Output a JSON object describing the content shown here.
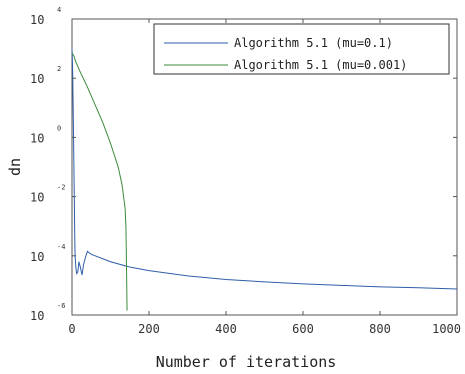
{
  "chart_data": {
    "type": "line",
    "xlabel": "Number of iterations",
    "ylabel": "dn",
    "xlim": [
      0,
      1000
    ],
    "ylim_log10": [
      -6,
      4
    ],
    "y_scale": "log",
    "x_ticks": [
      "0",
      "200",
      "400",
      "600",
      "800",
      "1000"
    ],
    "y_ticks": [
      {
        "base": "10",
        "exp": "-6"
      },
      {
        "base": "10",
        "exp": "-4"
      },
      {
        "base": "10",
        "exp": "-2"
      },
      {
        "base": "10",
        "exp": "0"
      },
      {
        "base": "10",
        "exp": "2"
      },
      {
        "base": "10",
        "exp": "4"
      }
    ],
    "grid": false,
    "legend_position": "top-right",
    "series": [
      {
        "name": "Algorithm 5.1 (mu=0.1)",
        "color": "#2f5ea8",
        "x": [
          0,
          1,
          2,
          3,
          4,
          5,
          6,
          7,
          8,
          10,
          12,
          15,
          18,
          22,
          26,
          30,
          35,
          40,
          45,
          50,
          60,
          80,
          100,
          150,
          200,
          300,
          400,
          500,
          600,
          700,
          800,
          900,
          1000
        ],
        "log10_y": [
          3.0,
          2.6,
          2.0,
          1.0,
          0.0,
          -1.0,
          -2.1,
          -3.2,
          -4.0,
          -4.4,
          -4.6,
          -4.55,
          -4.2,
          -4.4,
          -4.65,
          -4.3,
          -4.05,
          -3.85,
          -3.9,
          -3.95,
          -4.0,
          -4.1,
          -4.2,
          -4.38,
          -4.5,
          -4.68,
          -4.8,
          -4.88,
          -4.95,
          -5.0,
          -5.05,
          -5.08,
          -5.12
        ]
      },
      {
        "name": "Algorithm 5.1 (mu=0.001)",
        "color": "#3c8c3c",
        "x": [
          0,
          5,
          10,
          20,
          40,
          60,
          80,
          100,
          120,
          130,
          138,
          140,
          141,
          142,
          143
        ],
        "log10_y": [
          2.85,
          2.75,
          2.55,
          2.25,
          1.7,
          1.1,
          0.5,
          -0.2,
          -1.0,
          -1.6,
          -2.4,
          -3.0,
          -3.8,
          -4.8,
          -5.85
        ]
      }
    ]
  }
}
